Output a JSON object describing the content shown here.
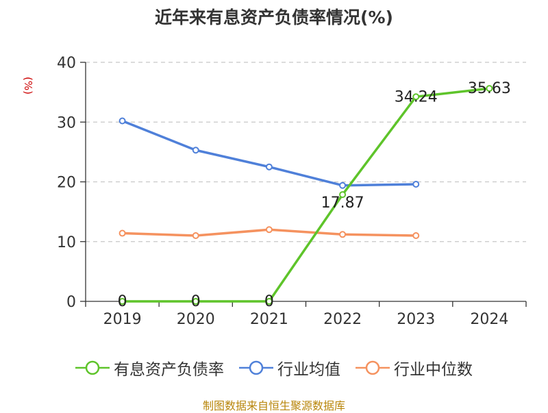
{
  "title": "近年来有息资产负债率情况(%)",
  "unit_label": "(%)",
  "source": "制图数据来自恒生聚源数据库",
  "chart_data": {
    "type": "line",
    "title": "近年来有息资产负债率情况(%)",
    "ylabel": "(%)",
    "categories": [
      "2019",
      "2020",
      "2021",
      "2022",
      "2023",
      "2024"
    ],
    "yticks": [
      "0",
      "10",
      "20",
      "30",
      "40"
    ],
    "ylim": [
      0,
      40
    ],
    "grid": true,
    "legend_position": "bottom",
    "series": [
      {
        "name": "有息资产负债率",
        "color": "#5ec42a",
        "values": [
          0,
          0,
          0,
          17.87,
          34.24,
          35.63
        ],
        "labels": [
          "0",
          "0",
          "0",
          "17.87",
          "34.24",
          "35.63"
        ]
      },
      {
        "name": "行业均值",
        "color": "#4f80d9",
        "values": [
          30.2,
          25.3,
          22.5,
          19.4,
          19.6,
          null
        ]
      },
      {
        "name": "行业中位数",
        "color": "#f5925f",
        "values": [
          11.4,
          11.0,
          12.0,
          11.2,
          11.0,
          null
        ]
      }
    ]
  }
}
